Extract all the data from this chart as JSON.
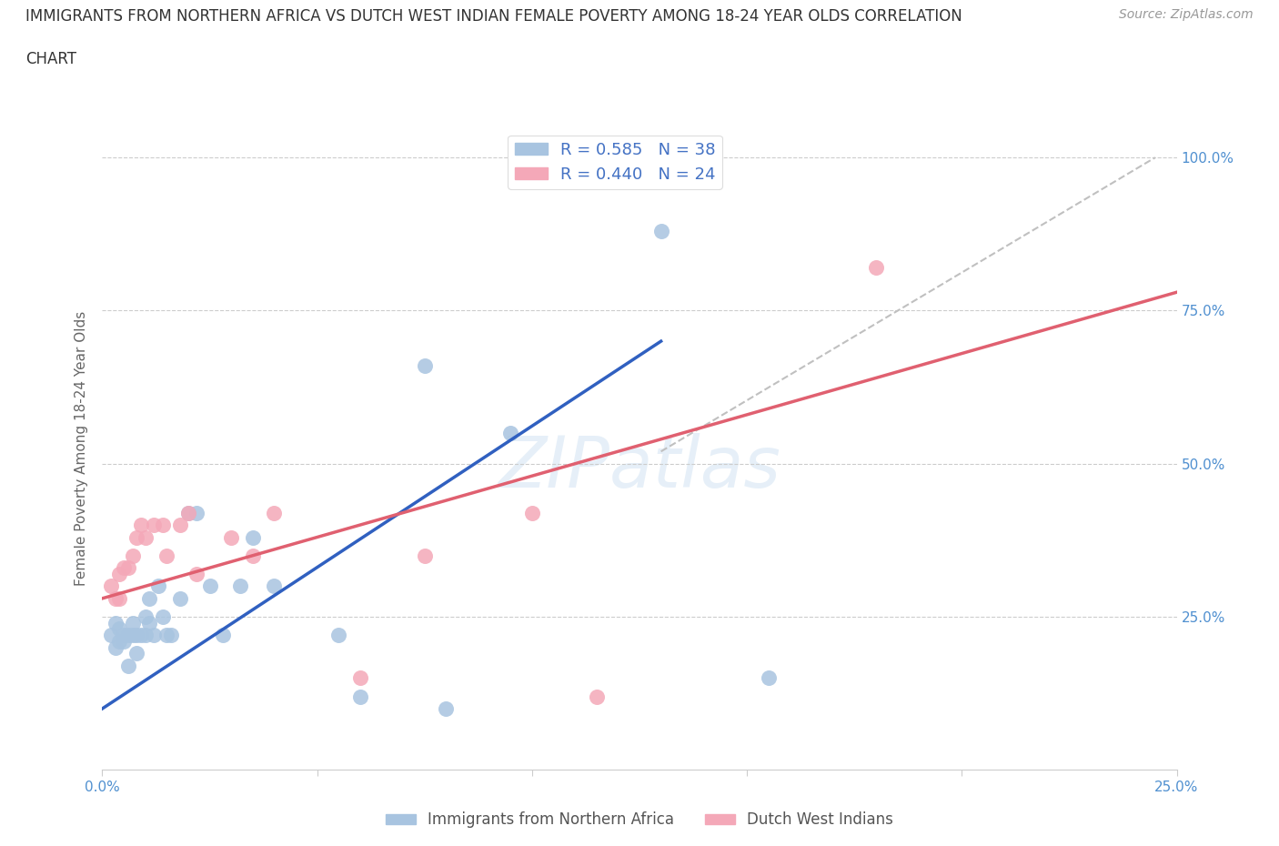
{
  "title_line1": "IMMIGRANTS FROM NORTHERN AFRICA VS DUTCH WEST INDIAN FEMALE POVERTY AMONG 18-24 YEAR OLDS CORRELATION",
  "title_line2": "CHART",
  "source": "Source: ZipAtlas.com",
  "ylabel": "Female Poverty Among 18-24 Year Olds",
  "xlim": [
    0,
    0.25
  ],
  "ylim": [
    0,
    1.05
  ],
  "x_ticks": [
    0.0,
    0.05,
    0.1,
    0.15,
    0.2,
    0.25
  ],
  "x_tick_labels": [
    "0.0%",
    "",
    "",
    "",
    "",
    "25.0%"
  ],
  "y_ticks": [
    0.0,
    0.25,
    0.5,
    0.75,
    1.0
  ],
  "y_tick_labels": [
    "",
    "25.0%",
    "50.0%",
    "75.0%",
    "100.0%"
  ],
  "blue_R": 0.585,
  "blue_N": 38,
  "pink_R": 0.44,
  "pink_N": 24,
  "blue_color": "#a8c4e0",
  "pink_color": "#f4a8b8",
  "blue_line_color": "#3060c0",
  "pink_line_color": "#e06070",
  "diagonal_color": "#c0c0c0",
  "watermark": "ZIPatlas",
  "blue_scatter_x": [
    0.002,
    0.003,
    0.003,
    0.004,
    0.004,
    0.005,
    0.005,
    0.006,
    0.006,
    0.007,
    0.007,
    0.008,
    0.008,
    0.009,
    0.01,
    0.01,
    0.011,
    0.011,
    0.012,
    0.013,
    0.014,
    0.015,
    0.016,
    0.018,
    0.02,
    0.022,
    0.025,
    0.028,
    0.032,
    0.035,
    0.04,
    0.055,
    0.06,
    0.075,
    0.08,
    0.095,
    0.13,
    0.155
  ],
  "blue_scatter_y": [
    0.22,
    0.24,
    0.2,
    0.21,
    0.23,
    0.21,
    0.22,
    0.17,
    0.22,
    0.22,
    0.24,
    0.19,
    0.22,
    0.22,
    0.22,
    0.25,
    0.24,
    0.28,
    0.22,
    0.3,
    0.25,
    0.22,
    0.22,
    0.28,
    0.42,
    0.42,
    0.3,
    0.22,
    0.3,
    0.38,
    0.3,
    0.22,
    0.12,
    0.66,
    0.1,
    0.55,
    0.88,
    0.15
  ],
  "pink_scatter_x": [
    0.002,
    0.003,
    0.004,
    0.004,
    0.005,
    0.006,
    0.007,
    0.008,
    0.009,
    0.01,
    0.012,
    0.014,
    0.015,
    0.018,
    0.02,
    0.022,
    0.03,
    0.035,
    0.04,
    0.06,
    0.075,
    0.1,
    0.115,
    0.18
  ],
  "pink_scatter_y": [
    0.3,
    0.28,
    0.32,
    0.28,
    0.33,
    0.33,
    0.35,
    0.38,
    0.4,
    0.38,
    0.4,
    0.4,
    0.35,
    0.4,
    0.42,
    0.32,
    0.38,
    0.35,
    0.42,
    0.15,
    0.35,
    0.42,
    0.12,
    0.82
  ],
  "blue_line_x": [
    0.0,
    0.13
  ],
  "blue_line_y": [
    0.1,
    0.7
  ],
  "pink_line_x": [
    0.0,
    0.25
  ],
  "pink_line_y": [
    0.28,
    0.78
  ],
  "diag_line_x": [
    0.13,
    0.245
  ],
  "diag_line_y": [
    0.52,
    1.0
  ],
  "legend_blue_label": "Immigrants from Northern Africa",
  "legend_pink_label": "Dutch West Indians"
}
